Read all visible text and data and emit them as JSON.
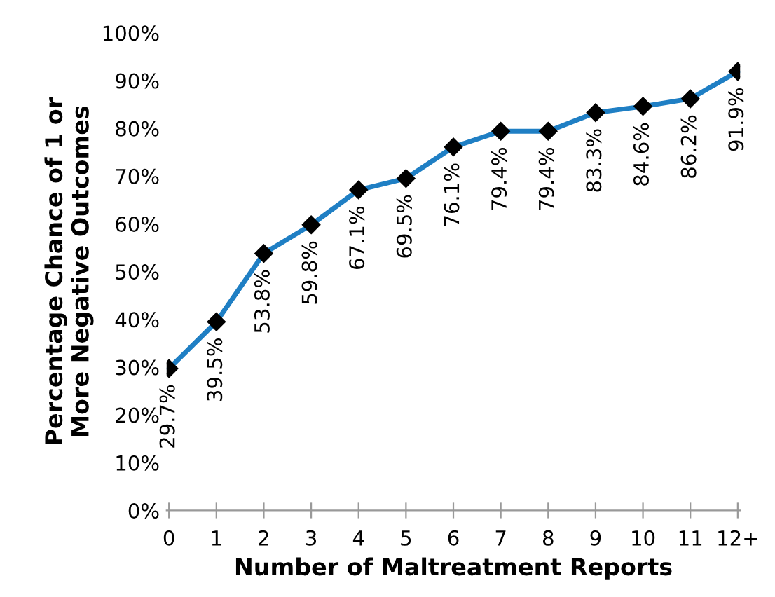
{
  "chart_data": {
    "type": "line",
    "xlabel": "Number of Maltreatment Reports",
    "ylabel": "Percentage Chance of 1 or\nMore Negative Outcomes",
    "categories": [
      "0",
      "1",
      "2",
      "3",
      "4",
      "5",
      "6",
      "7",
      "8",
      "9",
      "10",
      "11",
      "12+"
    ],
    "series": [
      {
        "color": "#1f7fc4",
        "values": [
          29.7,
          39.5,
          53.8,
          59.8,
          67.1,
          69.5,
          76.1,
          79.4,
          79.4,
          83.3,
          84.6,
          86.2,
          91.9
        ],
        "value_labels": [
          "29.7%",
          "39.5%",
          "53.8%",
          "59.8%",
          "67.1%",
          "69.5%",
          "76.1%",
          "79.4%",
          "79.4%",
          "83.3%",
          "84.6%",
          "86.2%",
          "91.9%"
        ]
      }
    ],
    "ylim": [
      0,
      100
    ],
    "yticks": [
      {
        "value": 0,
        "label": "0%"
      },
      {
        "value": 10,
        "label": "10%"
      },
      {
        "value": 20,
        "label": "20%"
      },
      {
        "value": 30,
        "label": "30%"
      },
      {
        "value": 40,
        "label": "40%"
      },
      {
        "value": 50,
        "label": "50%"
      },
      {
        "value": 60,
        "label": "60%"
      },
      {
        "value": 70,
        "label": "70%"
      },
      {
        "value": 80,
        "label": "80%"
      },
      {
        "value": 90,
        "label": "90%"
      },
      {
        "value": 100,
        "label": "100%"
      }
    ],
    "grid": false,
    "legend": false,
    "marker": "diamond",
    "line_style": "solid"
  }
}
